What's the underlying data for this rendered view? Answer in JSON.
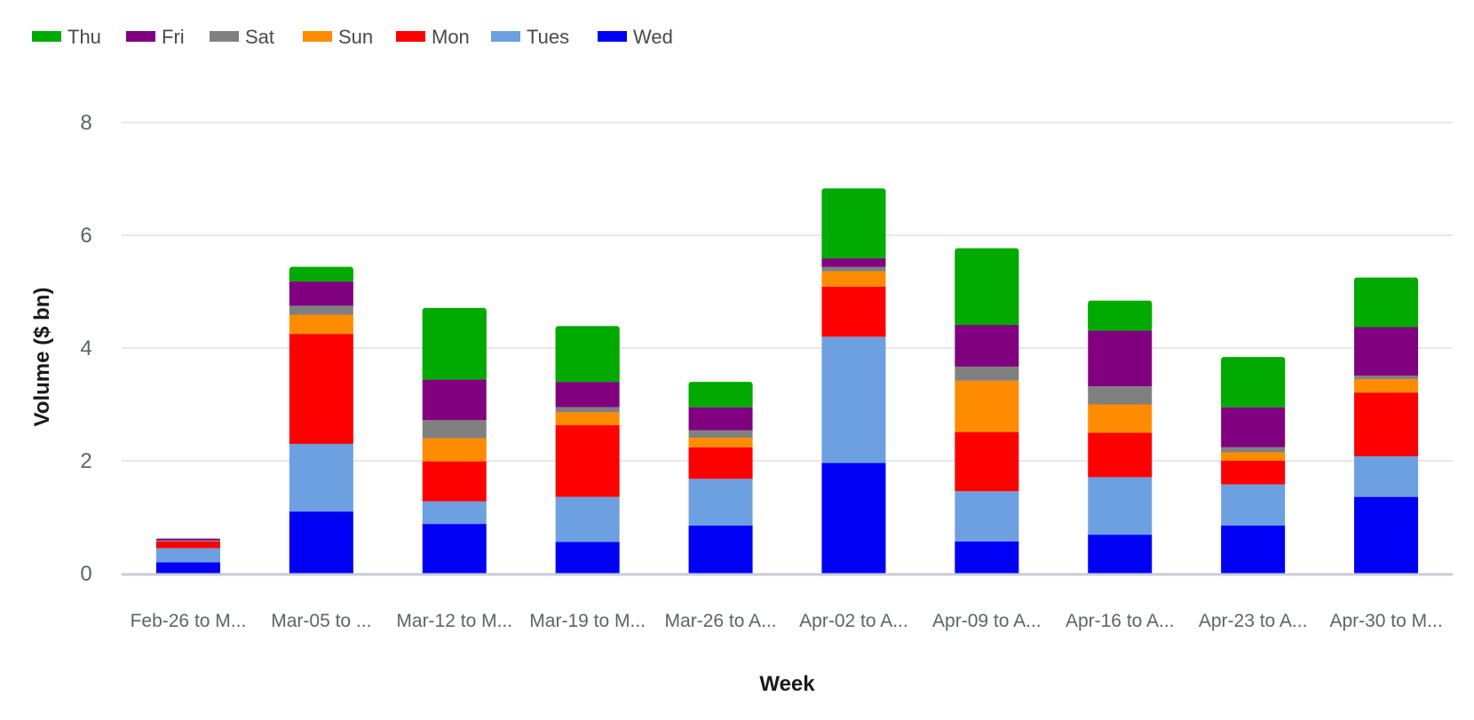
{
  "chart_data": {
    "type": "bar",
    "stacked": true,
    "xlabel": "Week",
    "ylabel": "Volume ($ bn)",
    "ylim": [
      0,
      8
    ],
    "yticks": [
      0,
      2,
      4,
      6,
      8
    ],
    "grid": true,
    "legend_position": "top-left",
    "categories": [
      "Feb-26 to M...",
      "Mar-05 to ...",
      "Mar-12 to M...",
      "Mar-19 to M...",
      "Mar-26 to A...",
      "Apr-02 to A...",
      "Apr-09 to A...",
      "Apr-16 to A...",
      "Apr-23 to A...",
      "Apr-30 to M..."
    ],
    "series": [
      {
        "name": "Wed",
        "color": "#0000f5",
        "values": [
          0.2,
          1.1,
          0.88,
          0.56,
          0.85,
          1.96,
          0.57,
          0.69,
          0.85,
          1.36
        ]
      },
      {
        "name": "Tues",
        "color": "#6ca0e0",
        "values": [
          0.25,
          1.2,
          0.4,
          0.8,
          0.83,
          2.24,
          0.89,
          1.02,
          0.73,
          0.72
        ]
      },
      {
        "name": "Mon",
        "color": "#ff0000",
        "values": [
          0.12,
          1.95,
          0.71,
          1.27,
          0.56,
          0.89,
          1.05,
          0.79,
          0.42,
          1.13
        ]
      },
      {
        "name": "Sun",
        "color": "#ff8c00",
        "values": [
          0.0,
          0.34,
          0.41,
          0.23,
          0.17,
          0.27,
          0.91,
          0.5,
          0.15,
          0.24
        ]
      },
      {
        "name": "Sat",
        "color": "#808080",
        "values": [
          0.02,
          0.16,
          0.32,
          0.09,
          0.13,
          0.08,
          0.25,
          0.32,
          0.09,
          0.06
        ]
      },
      {
        "name": "Fri",
        "color": "#800080",
        "values": [
          0.03,
          0.43,
          0.72,
          0.45,
          0.41,
          0.15,
          0.74,
          0.99,
          0.71,
          0.86
        ]
      },
      {
        "name": "Thu",
        "color": "#00aa00",
        "values": [
          0.0,
          0.26,
          1.27,
          0.99,
          0.45,
          1.24,
          1.36,
          0.53,
          0.89,
          0.88
        ]
      }
    ],
    "legend_order": [
      "Thu",
      "Fri",
      "Sat",
      "Sun",
      "Mon",
      "Tues",
      "Wed"
    ]
  }
}
